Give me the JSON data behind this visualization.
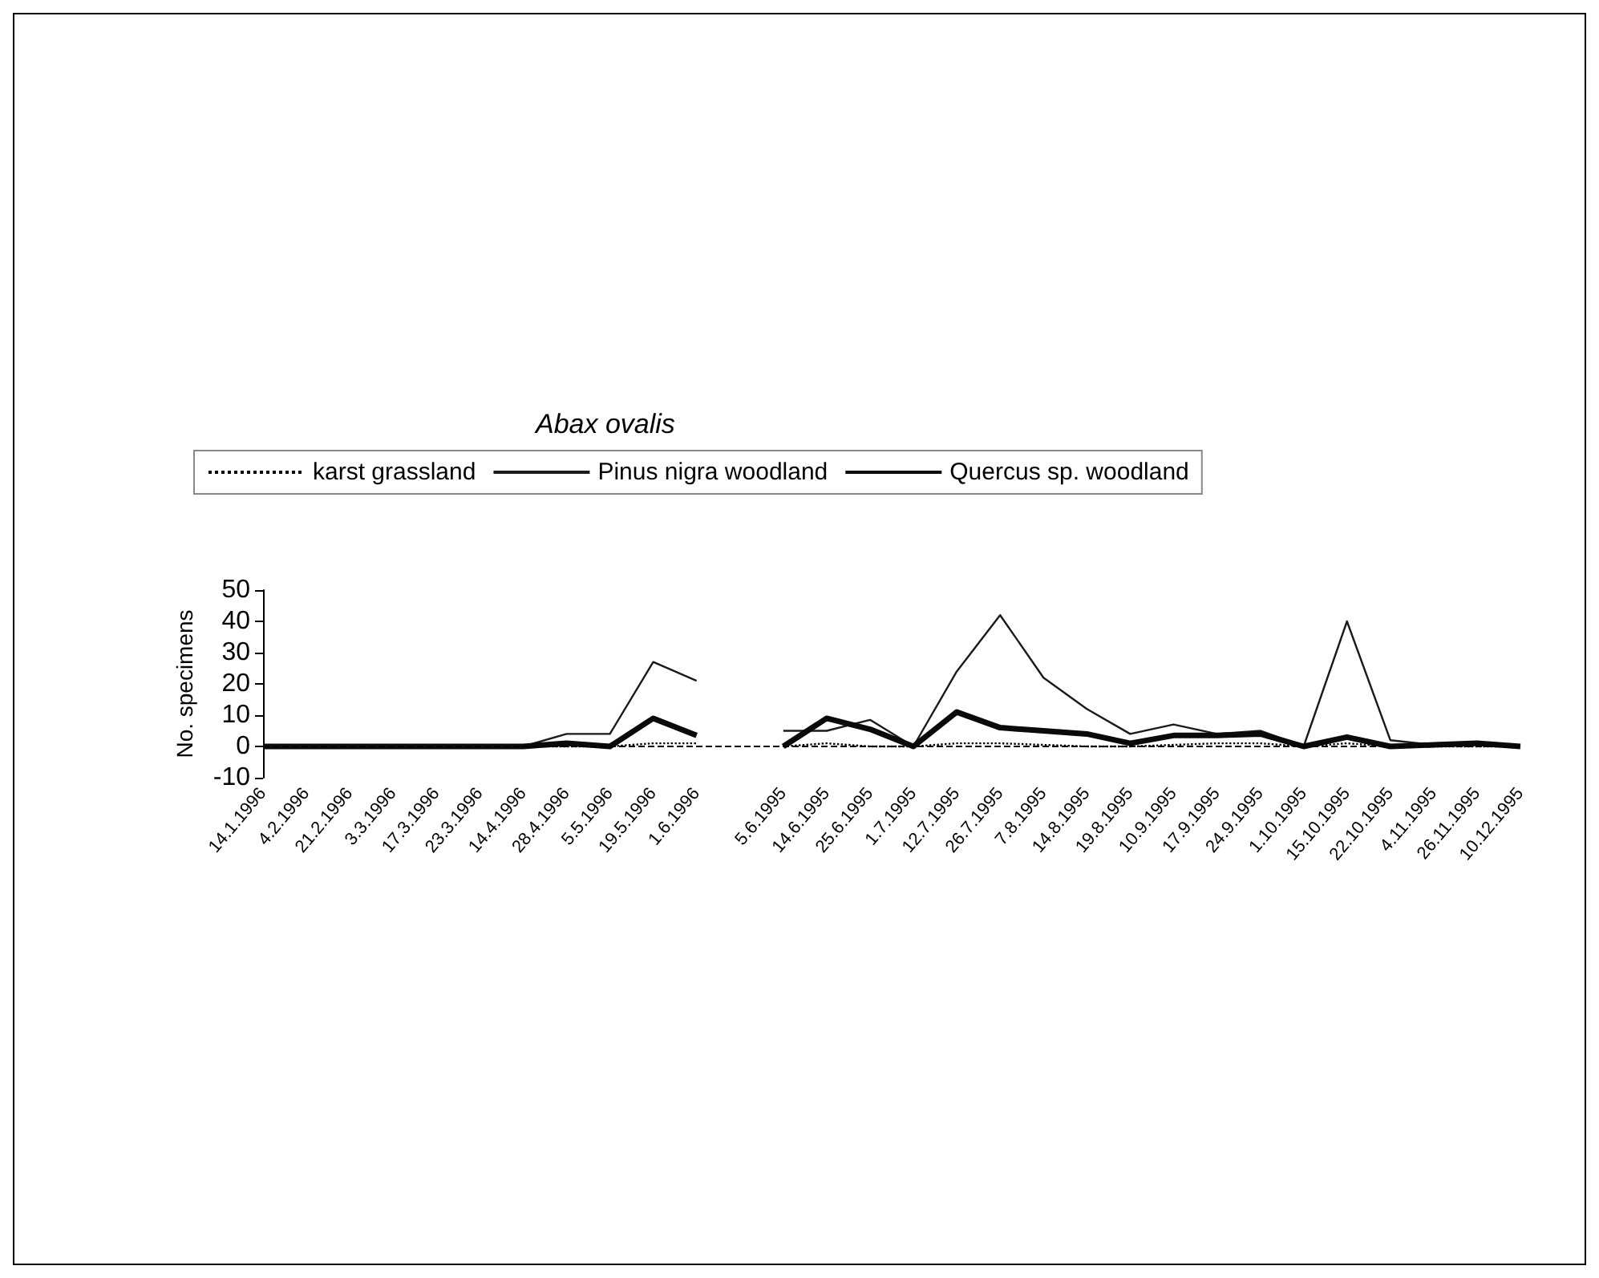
{
  "chart_data": {
    "type": "line",
    "title": "Abax ovalis",
    "ylabel": "No. specimens",
    "categories": [
      "14.1.1996",
      "4.2.1996",
      "21.2.1996",
      "3.3.1996",
      "17.3.1996",
      "23.3.1996",
      "14.4.1996",
      "28.4.1996",
      "5.5.1996",
      "19.5.1996",
      "1.6.1996",
      null,
      "5.6.1995",
      "14.6.1995",
      "25.6.1995",
      "1.7.1995",
      "12.7.1995",
      "26.7.1995",
      "7.8.1995",
      "14.8.1995",
      "19.8.1995",
      "10.9.1995",
      "17.9.1995",
      "24.9.1995",
      "1.10.1995",
      "15.10.1995",
      "22.10.1995",
      "4.11.1995",
      "26.11.1995",
      "10.12.1995"
    ],
    "series": [
      {
        "name": "karst grassland",
        "color": "#000000",
        "line_style": "dotted",
        "values": [
          0,
          0,
          0,
          0,
          0,
          0,
          0,
          0,
          0,
          1,
          1,
          null,
          0,
          1,
          0,
          0,
          1,
          1,
          0.5,
          0,
          0,
          0.5,
          1,
          1,
          0,
          1,
          0,
          0,
          0,
          0
        ]
      },
      {
        "name": "Pinus nigra woodland",
        "color": "#1a1a1a",
        "line_style": "solid",
        "values": [
          0,
          0,
          0,
          0,
          0,
          0,
          0,
          4,
          4,
          27,
          21,
          null,
          5,
          5,
          8.5,
          0,
          24,
          42,
          22,
          12,
          4,
          7,
          4,
          5,
          0,
          40,
          2,
          0.5,
          1,
          0
        ]
      },
      {
        "name": "Quercus sp. woodland",
        "color": "#0a0a0a",
        "line_style": "solid",
        "values": [
          0,
          0,
          0,
          0,
          0,
          0,
          0,
          1,
          0,
          9,
          3.5,
          null,
          0,
          9,
          5.5,
          0,
          11,
          6,
          5,
          4,
          1,
          3.5,
          3.5,
          4,
          0,
          3,
          0,
          0.5,
          1,
          0
        ]
      }
    ],
    "ylim": [
      -10,
      50
    ],
    "yticks": [
      -10,
      0,
      10,
      20,
      30,
      40,
      50
    ],
    "grid": false,
    "legend": "top",
    "marker": "none",
    "ref_lines": [
      {
        "axis": "y",
        "value": 0,
        "line_style": "dashed"
      }
    ]
  }
}
